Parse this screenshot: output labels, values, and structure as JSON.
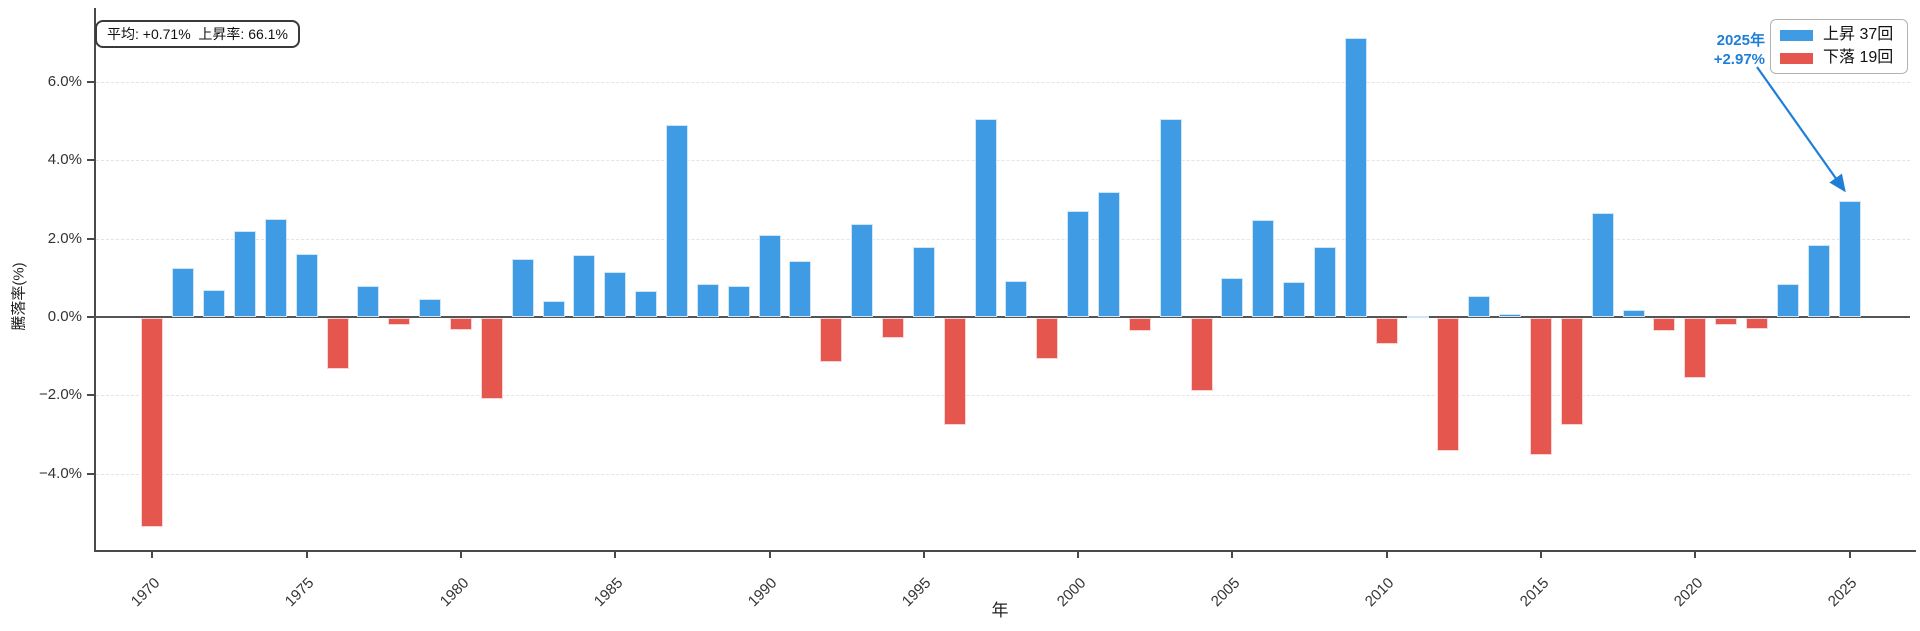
{
  "chart_data": {
    "type": "bar",
    "title": "",
    "xlabel": "年",
    "ylabel": "騰落率(%)",
    "x": [
      1970,
      1971,
      1972,
      1973,
      1974,
      1975,
      1976,
      1977,
      1978,
      1979,
      1980,
      1981,
      1982,
      1983,
      1984,
      1985,
      1986,
      1987,
      1988,
      1989,
      1990,
      1991,
      1992,
      1993,
      1994,
      1995,
      1996,
      1997,
      1998,
      1999,
      2000,
      2001,
      2002,
      2003,
      2004,
      2005,
      2006,
      2007,
      2008,
      2009,
      2010,
      2011,
      2012,
      2013,
      2014,
      2015,
      2016,
      2017,
      2018,
      2019,
      2020,
      2021,
      2022,
      2023,
      2024,
      2025
    ],
    "values": [
      -5.32,
      1.26,
      0.68,
      2.2,
      2.49,
      1.61,
      -1.31,
      0.79,
      -0.17,
      0.45,
      -0.31,
      -2.06,
      1.47,
      0.4,
      1.58,
      1.15,
      0.67,
      4.89,
      0.83,
      0.78,
      2.1,
      1.43,
      -1.12,
      2.36,
      -0.51,
      1.78,
      -2.72,
      5.05,
      0.93,
      -1.05,
      2.71,
      3.19,
      -0.33,
      5.05,
      -1.85,
      1.0,
      2.48,
      0.9,
      1.78,
      7.12,
      -0.66,
      0.03,
      -3.39,
      0.53,
      0.07,
      -3.49,
      -2.72,
      2.65,
      0.19,
      -0.33,
      -1.53,
      -0.17,
      -0.27,
      0.83,
      1.83,
      2.97
    ],
    "ylim": [
      -5.95,
      7.9
    ],
    "grid": "horizontal-dashed",
    "yticks": [
      {
        "value": 6,
        "label": "6.0%"
      },
      {
        "value": 4,
        "label": "4.0%"
      },
      {
        "value": 2,
        "label": "2.0%"
      },
      {
        "value": 0,
        "label": "0.0%"
      },
      {
        "value": -2,
        "label": "−2.0%"
      },
      {
        "value": -4,
        "label": "−4.0%"
      }
    ],
    "xticks": [
      1970,
      1975,
      1980,
      1985,
      1990,
      1995,
      2000,
      2005,
      2010,
      2015,
      2020,
      2025
    ],
    "colors": {
      "up": "#3f9be4",
      "down": "#e5564f"
    },
    "stats_box": {
      "text": "平均: +0.71%  上昇率: 66.1%"
    },
    "legend": {
      "position": "top-right",
      "entries": [
        {
          "label": "上昇 37回",
          "color": "#3f9be4"
        },
        {
          "label": "下落 19回",
          "color": "#e5564f"
        }
      ]
    },
    "annotation": {
      "line1": "2025年",
      "line2": "+2.97%",
      "color": "#1f7fd8",
      "points_to_year": 2025,
      "points_to_value": 2.97
    }
  }
}
